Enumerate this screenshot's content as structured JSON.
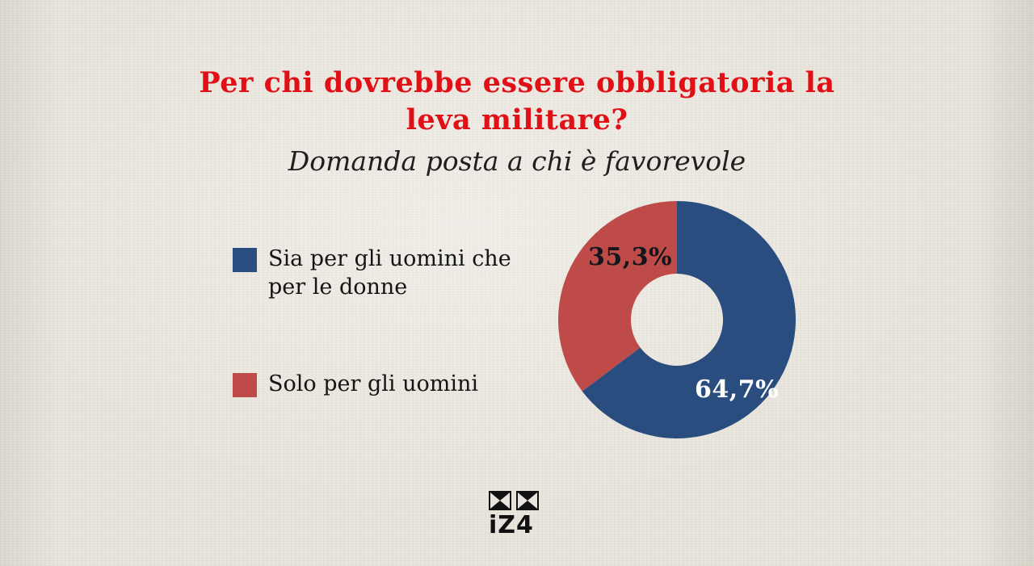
{
  "title": {
    "line1": "Per chi dovrebbe essere obbligatoria la",
    "line2": "leva militare?"
  },
  "title_color": "#e01016",
  "subtitle": "Domanda posta a chi è favorevole",
  "legend": {
    "items": [
      {
        "label": "Sia per gli uomini che per le donne",
        "color": "#2a4d7f"
      },
      {
        "label": "Solo per gli uomini",
        "color": "#bf4b48"
      }
    ]
  },
  "chart_data": {
    "type": "pie",
    "donut": true,
    "title": "Per chi dovrebbe essere obbligatoria la leva militare?",
    "subtitle": "Domanda posta a chi è favorevole",
    "categories": [
      "Sia per gli uomini che per le donne",
      "Solo per gli uomini"
    ],
    "values": [
      64.7,
      35.3
    ],
    "labels": [
      "64,7%",
      "35,3%"
    ],
    "colors": [
      "#2a4d7f",
      "#bf4b48"
    ],
    "start_angle_deg": -90,
    "direction": "clockwise",
    "legend_position": "left",
    "label_colors": [
      "#ffffff",
      "#15151e"
    ]
  },
  "logo": {
    "name": "izi-logo",
    "text": "iZ4"
  }
}
